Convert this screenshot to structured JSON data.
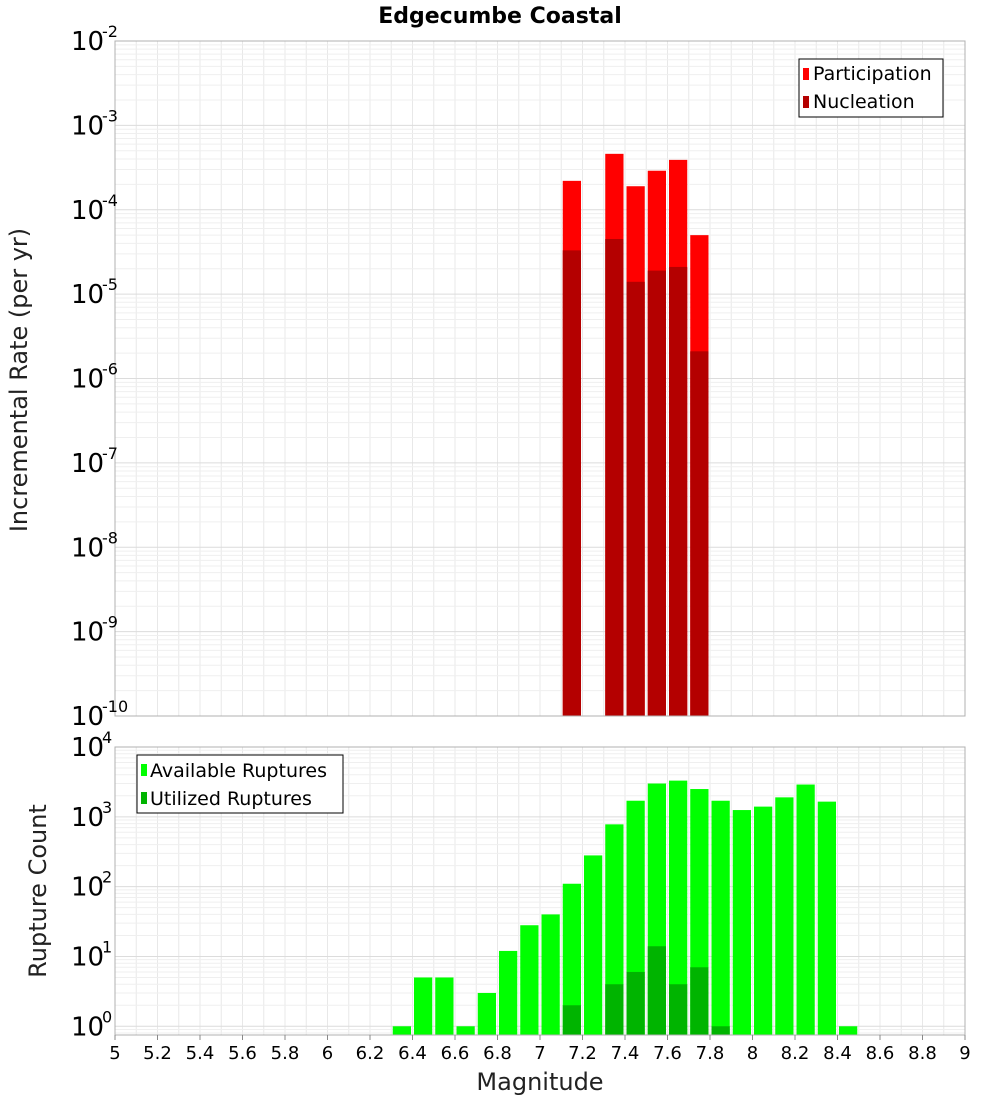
{
  "chart_data": [
    {
      "type": "bar",
      "title": "Edgecumbe Coastal",
      "ylabel": "Incremental Rate (per yr)",
      "xlabel": "",
      "y_scale": "log",
      "ylim": [
        1e-10,
        0.01
      ],
      "xlim": [
        5,
        9
      ],
      "bin_width": 0.1,
      "grid": true,
      "legend_position": "top-right",
      "y_tick_labels": [
        {
          "base": "10",
          "exp": "-10"
        },
        {
          "base": "10",
          "exp": "-9"
        },
        {
          "base": "10",
          "exp": "-8"
        },
        {
          "base": "10",
          "exp": "-7"
        },
        {
          "base": "10",
          "exp": "-6"
        },
        {
          "base": "10",
          "exp": "-5"
        },
        {
          "base": "10",
          "exp": "-4"
        },
        {
          "base": "10",
          "exp": "-3"
        },
        {
          "base": "10",
          "exp": "-2"
        }
      ],
      "series": [
        {
          "name": "Participation",
          "color": "#ff0000",
          "x": [
            7.15,
            7.35,
            7.45,
            7.55,
            7.65,
            7.75
          ],
          "values": [
            0.00022,
            0.00046,
            0.00019,
            0.00029,
            0.00039,
            5e-05
          ]
        },
        {
          "name": "Nucleation",
          "color": "#b40000",
          "x": [
            7.15,
            7.35,
            7.45,
            7.55,
            7.65,
            7.75
          ],
          "values": [
            3.3e-05,
            4.5e-05,
            1.4e-05,
            1.9e-05,
            2.1e-05,
            2.1e-06
          ]
        }
      ]
    },
    {
      "type": "bar",
      "title": "",
      "ylabel": "Rupture Count",
      "xlabel": "Magnitude",
      "y_scale": "log",
      "ylim": [
        0.75,
        10000
      ],
      "xlim": [
        5,
        9
      ],
      "bin_width": 0.1,
      "grid": true,
      "legend_position": "top-left",
      "x_tick_labels": [
        "5",
        "5.2",
        "5.4",
        "5.6",
        "5.8",
        "6",
        "6.2",
        "6.4",
        "6.6",
        "6.8",
        "7",
        "7.2",
        "7.4",
        "7.6",
        "7.8",
        "8",
        "8.2",
        "8.4",
        "8.6",
        "8.8",
        "9"
      ],
      "y_tick_labels": [
        {
          "base": "10",
          "exp": "0"
        },
        {
          "base": "10",
          "exp": "1"
        },
        {
          "base": "10",
          "exp": "2"
        },
        {
          "base": "10",
          "exp": "3"
        },
        {
          "base": "10",
          "exp": "4"
        }
      ],
      "series": [
        {
          "name": "Available Ruptures",
          "color": "#00ff00",
          "x": [
            6.35,
            6.45,
            6.55,
            6.65,
            6.75,
            6.85,
            6.95,
            7.05,
            7.15,
            7.25,
            7.35,
            7.45,
            7.55,
            7.65,
            7.75,
            7.85,
            7.95,
            8.05,
            8.15,
            8.25,
            8.35,
            8.45
          ],
          "values": [
            1,
            5,
            5,
            1,
            3,
            12,
            28,
            40,
            110,
            280,
            780,
            1700,
            3000,
            3300,
            2500,
            1700,
            1250,
            1400,
            1900,
            2900,
            1650,
            1
          ]
        },
        {
          "name": "Utilized Ruptures",
          "color": "#00b400",
          "x": [
            7.15,
            7.35,
            7.45,
            7.55,
            7.65,
            7.75,
            7.85
          ],
          "values": [
            2,
            4,
            6,
            14,
            4,
            7,
            1
          ]
        }
      ]
    }
  ]
}
